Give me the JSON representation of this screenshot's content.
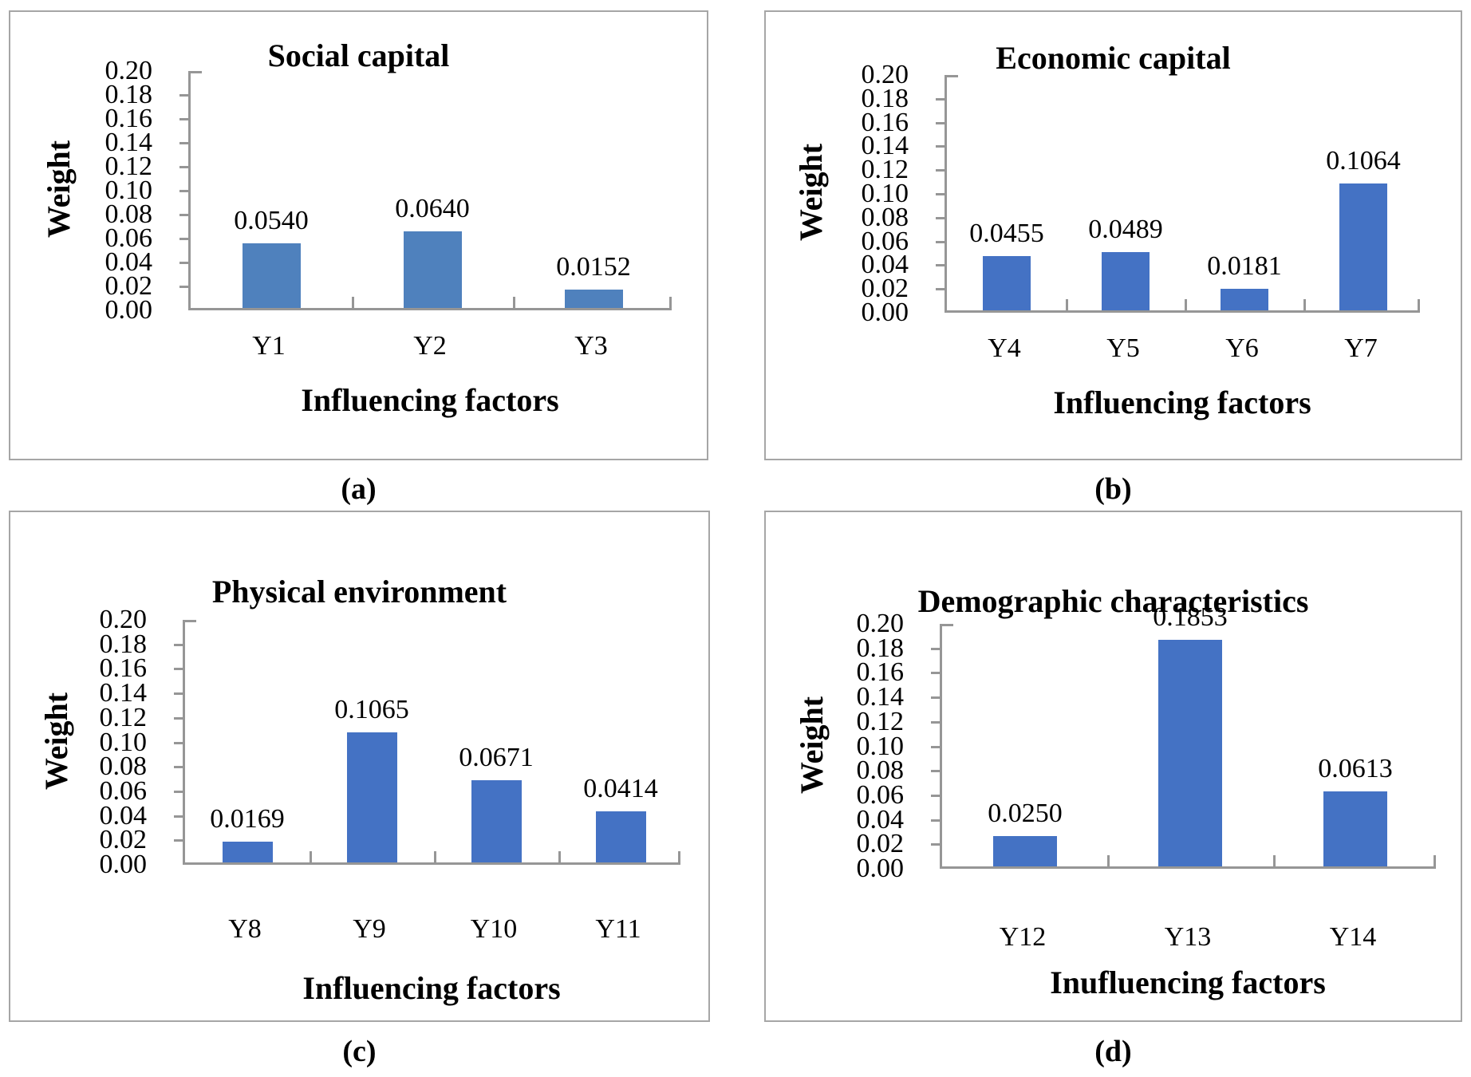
{
  "figure": {
    "background_color": "#ffffff",
    "panel_border_color": "#a6a6a6",
    "axis_color": "#969696",
    "text_color": "#000000"
  },
  "chart_data": [
    {
      "panel": "a",
      "caption": "(a)",
      "type": "bar",
      "title": "Social capital",
      "xlabel": "Influencing factors",
      "ylabel": "Weight",
      "categories": [
        "Y1",
        "Y2",
        "Y3"
      ],
      "values": [
        0.054,
        0.064,
        0.0152
      ],
      "data_labels": [
        "0.0540",
        "0.0640",
        "0.0152"
      ],
      "ylim": [
        0,
        0.2
      ],
      "ytick_step": 0.02,
      "ytick_labels": [
        "0.00",
        "0.02",
        "0.04",
        "0.06",
        "0.08",
        "0.10",
        "0.12",
        "0.14",
        "0.16",
        "0.18",
        "0.20"
      ],
      "bar_color": "#4f81bd",
      "grid": false,
      "legend": "none"
    },
    {
      "panel": "b",
      "caption": "(b)",
      "type": "bar",
      "title": "Economic capital",
      "xlabel": "Influencing factors",
      "ylabel": "Weight",
      "categories": [
        "Y4",
        "Y5",
        "Y6",
        "Y7"
      ],
      "values": [
        0.0455,
        0.0489,
        0.0181,
        0.1064
      ],
      "data_labels": [
        "0.0455",
        "0.0489",
        "0.0181",
        "0.1064"
      ],
      "ylim": [
        0,
        0.2
      ],
      "ytick_step": 0.02,
      "ytick_labels": [
        "0.00",
        "0.02",
        "0.04",
        "0.06",
        "0.08",
        "0.10",
        "0.12",
        "0.14",
        "0.16",
        "0.18",
        "0.20"
      ],
      "bar_color": "#4472c4",
      "grid": false,
      "legend": "none"
    },
    {
      "panel": "c",
      "caption": "(c)",
      "type": "bar",
      "title": "Physical environment",
      "xlabel": "Influencing factors",
      "ylabel": "Weight",
      "categories": [
        "Y8",
        "Y9",
        "Y10",
        "Y11"
      ],
      "values": [
        0.0169,
        0.1065,
        0.0671,
        0.0414
      ],
      "data_labels": [
        "0.0169",
        "0.1065",
        "0.0671",
        "0.0414"
      ],
      "ylim": [
        0,
        0.2
      ],
      "ytick_step": 0.02,
      "ytick_labels": [
        "0.00",
        "0.02",
        "0.04",
        "0.06",
        "0.08",
        "0.10",
        "0.12",
        "0.14",
        "0.16",
        "0.18",
        "0.20"
      ],
      "bar_color": "#4472c4",
      "grid": false,
      "legend": "none"
    },
    {
      "panel": "d",
      "caption": "(d)",
      "type": "bar",
      "title": "Demographic characteristics",
      "xlabel": "Inufluencing factors",
      "ylabel": "Weight",
      "categories": [
        "Y12",
        "Y13",
        "Y14"
      ],
      "values": [
        0.025,
        0.1853,
        0.0613
      ],
      "data_labels": [
        "0.0250",
        "0.1853",
        "0.0613"
      ],
      "ylim": [
        0,
        0.2
      ],
      "ytick_step": 0.02,
      "ytick_labels": [
        "0.00",
        "0.02",
        "0.04",
        "0.06",
        "0.08",
        "0.10",
        "0.12",
        "0.14",
        "0.16",
        "0.18",
        "0.20"
      ],
      "bar_color": "#4472c4",
      "grid": false,
      "legend": "none"
    }
  ]
}
